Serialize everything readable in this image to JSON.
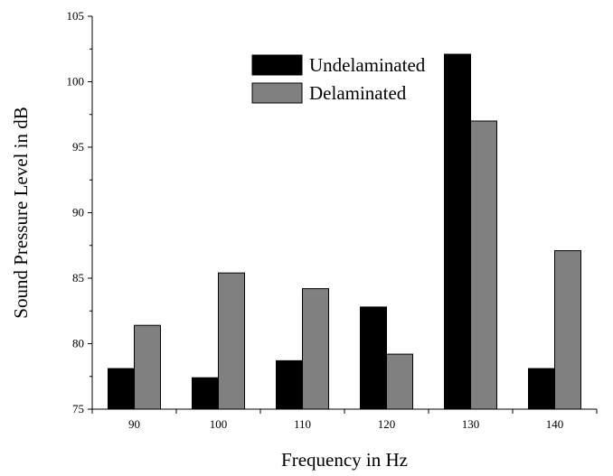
{
  "chart_data": {
    "type": "bar",
    "title": "",
    "xlabel": "Frequency in Hz",
    "ylabel": "Sound Pressure Level in dB",
    "categories": [
      "90",
      "100",
      "110",
      "120",
      "130",
      "140"
    ],
    "ylim": [
      75,
      105
    ],
    "yticks": [
      "75",
      "80",
      "85",
      "90",
      "95",
      "100",
      "105"
    ],
    "grid": false,
    "legend_position": "top-center",
    "series": [
      {
        "name": "Undelaminated",
        "color": "#000000",
        "values": [
          78.1,
          77.4,
          78.7,
          82.8,
          102.1,
          78.1
        ]
      },
      {
        "name": "Delaminated",
        "color": "#808080",
        "values": [
          81.4,
          85.4,
          84.2,
          79.2,
          97.0,
          87.1
        ]
      }
    ]
  }
}
